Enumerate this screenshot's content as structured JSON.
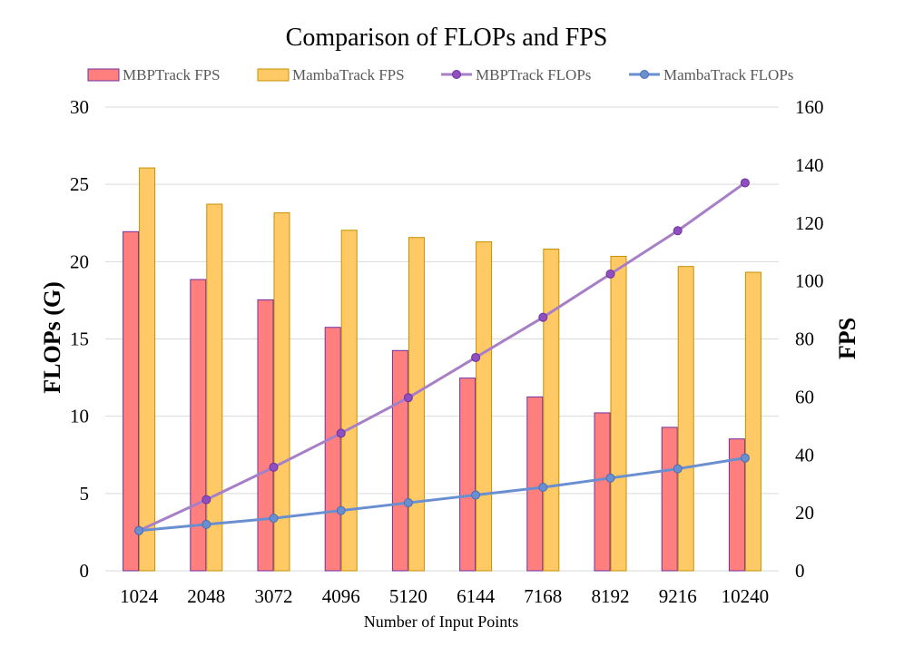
{
  "chart_data": {
    "type": "bar+line",
    "title": "Comparison of FLOPs and FPS",
    "xlabel": "Number of Input Points",
    "ylabel_left": "FLOPs (G)",
    "ylabel_right": "FPS",
    "categories": [
      "1024",
      "2048",
      "3072",
      "4096",
      "5120",
      "6144",
      "7168",
      "8192",
      "9216",
      "10240"
    ],
    "ylim_left": [
      0,
      30
    ],
    "yticks_left": [
      "0",
      "5",
      "10",
      "15",
      "20",
      "25",
      "30"
    ],
    "ylim_right": [
      0,
      160
    ],
    "yticks_right": [
      "0",
      "20",
      "40",
      "60",
      "80",
      "100",
      "120",
      "140",
      "160"
    ],
    "grid": true,
    "legend_position": "top",
    "colors": {
      "mbp_bar_fill": "#ff7f7f",
      "mbp_bar_edge": "#7030a0",
      "mamba_bar_fill": "#ffc966",
      "mamba_bar_edge": "#c59100",
      "mbp_line": "#a77fc7",
      "mbp_marker": "#7030a0",
      "mamba_line": "#6a8fd0",
      "mamba_marker": "#4a6fb0"
    },
    "series": [
      {
        "name": "MBPTrack FPS",
        "kind": "bar",
        "axis": "right",
        "values": [
          117,
          100.5,
          93.5,
          84,
          76,
          66.5,
          60,
          54.5,
          49.5,
          45.5
        ]
      },
      {
        "name": "MambaTrack FPS",
        "kind": "bar",
        "axis": "right",
        "values": [
          139,
          126.5,
          123.5,
          117.5,
          115,
          113.5,
          111,
          108.5,
          105,
          103
        ]
      },
      {
        "name": "MBPTrack FLOPs",
        "kind": "line",
        "axis": "left",
        "values": [
          2.6,
          4.6,
          6.7,
          8.9,
          11.2,
          13.8,
          16.4,
          19.2,
          22.0,
          25.1
        ]
      },
      {
        "name": "MambaTrack FLOPs",
        "kind": "line",
        "axis": "left",
        "values": [
          2.6,
          3.0,
          3.4,
          3.9,
          4.4,
          4.9,
          5.4,
          6.0,
          6.6,
          7.3
        ]
      }
    ]
  }
}
